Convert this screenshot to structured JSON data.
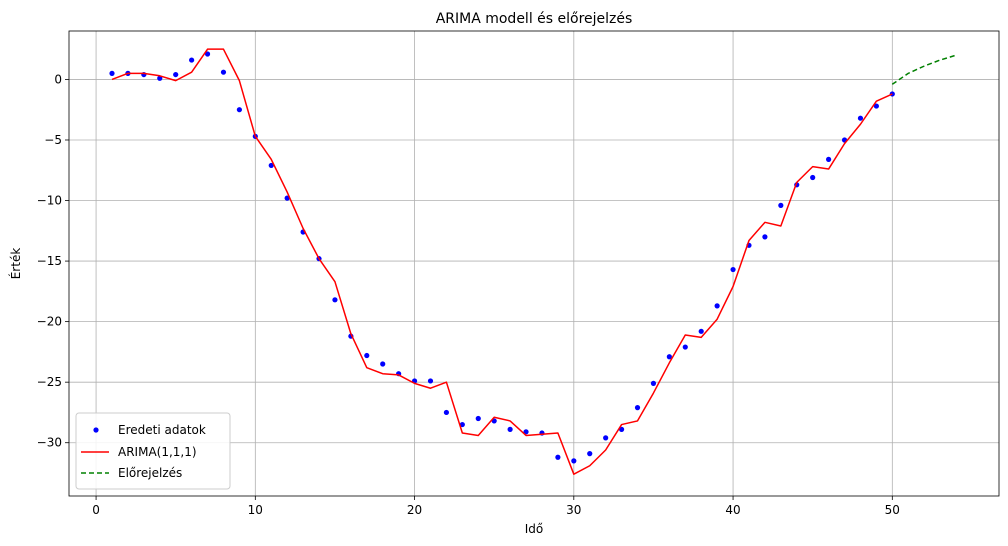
{
  "chart_data": {
    "type": "line",
    "title": "ARIMA modell és előrejelzés",
    "xlabel": "Idő",
    "ylabel": "Érték",
    "xlim": [
      -1.7,
      56.7
    ],
    "ylim": [
      -34.4,
      4.0
    ],
    "xticks": [
      0,
      10,
      20,
      30,
      40,
      50
    ],
    "yticks": [
      0,
      -5,
      -10,
      -15,
      -20,
      -25,
      -30
    ],
    "xtick_labels": [
      "0",
      "10",
      "20",
      "30",
      "40",
      "50"
    ],
    "ytick_labels": [
      "0",
      "−5",
      "−10",
      "−15",
      "−20",
      "−25",
      "−30"
    ],
    "grid": true,
    "legend_position": "lower-left",
    "series": [
      {
        "name": "Eredeti adatok",
        "style": "dots",
        "color": "#0000ff",
        "x": [
          1,
          2,
          3,
          4,
          5,
          6,
          7,
          8,
          9,
          10,
          11,
          12,
          13,
          14,
          15,
          16,
          17,
          18,
          19,
          20,
          21,
          22,
          23,
          24,
          25,
          26,
          27,
          28,
          29,
          30,
          31,
          32,
          33,
          34,
          35,
          36,
          37,
          38,
          39,
          40,
          41,
          42,
          43,
          44,
          45,
          46,
          47,
          48,
          49,
          50
        ],
        "values": [
          0.5,
          0.5,
          0.4,
          0.1,
          0.4,
          1.6,
          2.1,
          0.6,
          -2.5,
          -4.7,
          -7.1,
          -9.8,
          -12.6,
          -14.8,
          -18.2,
          -21.2,
          -22.8,
          -23.5,
          -24.3,
          -24.9,
          -24.9,
          -27.5,
          -28.5,
          -28.0,
          -28.2,
          -28.9,
          -29.1,
          -29.2,
          -31.2,
          -31.5,
          -30.9,
          -29.6,
          -28.9,
          -27.1,
          -25.1,
          -22.9,
          -22.1,
          -20.8,
          -18.7,
          -15.7,
          -13.7,
          -13.0,
          -10.4,
          -8.7,
          -8.1,
          -6.6,
          -5.0,
          -3.2,
          -2.2,
          -1.2
        ]
      },
      {
        "name": "ARIMA(1,1,1)",
        "style": "line",
        "color": "#ff0000",
        "x": [
          1,
          2,
          3,
          4,
          5,
          6,
          7,
          8,
          9,
          10,
          11,
          12,
          13,
          14,
          15,
          16,
          17,
          18,
          19,
          20,
          21,
          22,
          23,
          24,
          25,
          26,
          27,
          28,
          29,
          30,
          31,
          32,
          33,
          34,
          35,
          36,
          37,
          38,
          39,
          40,
          41,
          42,
          43,
          44,
          45,
          46,
          47,
          48,
          49,
          50
        ],
        "values": [
          0.0,
          0.5,
          0.5,
          0.3,
          -0.1,
          0.6,
          2.5,
          2.5,
          -0.1,
          -4.7,
          -6.6,
          -9.3,
          -12.3,
          -14.8,
          -16.7,
          -21.0,
          -23.8,
          -24.3,
          -24.4,
          -25.1,
          -25.5,
          -25.0,
          -29.2,
          -29.4,
          -27.9,
          -28.2,
          -29.4,
          -29.3,
          -29.2,
          -32.6,
          -31.9,
          -30.6,
          -28.5,
          -28.2,
          -25.9,
          -23.4,
          -21.1,
          -21.3,
          -19.8,
          -17.1,
          -13.3,
          -11.8,
          -12.1,
          -8.5,
          -7.2,
          -7.4,
          -5.3,
          -3.7,
          -1.8,
          -1.2
        ]
      },
      {
        "name": "Előrejelzés",
        "style": "dashed",
        "color": "#008000",
        "x": [
          50,
          51,
          52,
          53,
          54
        ],
        "values": [
          -0.4,
          0.5,
          1.1,
          1.6,
          2.0
        ]
      }
    ]
  }
}
